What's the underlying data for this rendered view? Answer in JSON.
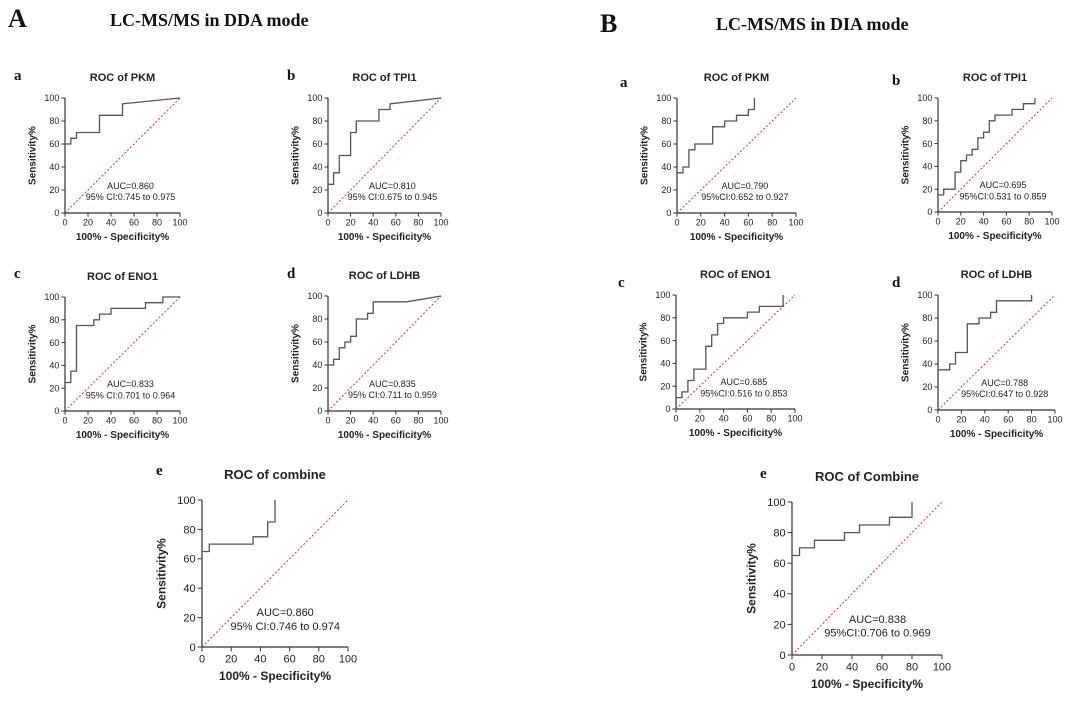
{
  "headers": {
    "A_letter": "A",
    "A_title": "LC-MS/MS in DDA mode",
    "B_letter": "B",
    "B_title": "LC-MS/MS in DIA mode"
  },
  "axis_text": {
    "xlabel": "100% - Specificity%",
    "ylabel": "Sensitivity%",
    "ticks": [
      "0",
      "20",
      "40",
      "60",
      "80",
      "100"
    ]
  },
  "colors": {
    "roc_line": "#555555",
    "diagonal": "#e03030",
    "axis": "#333333"
  },
  "chart_data": [
    {
      "type": "line",
      "group": "A",
      "letter": "a",
      "title": "ROC of PKM",
      "xlabel": "100% - Specificity%",
      "ylabel": "Sensitivity%",
      "xlim": [
        0,
        100
      ],
      "ylim": [
        0,
        100
      ],
      "auc": "AUC=0.860",
      "ci": "95% CI:0.745 to 0.975",
      "x": [
        0,
        0,
        5,
        5,
        10,
        10,
        30,
        30,
        50,
        50,
        100
      ],
      "y": [
        0,
        60,
        60,
        65,
        65,
        70,
        70,
        85,
        85,
        95,
        100
      ]
    },
    {
      "type": "line",
      "group": "A",
      "letter": "b",
      "title": "ROC of TPI1",
      "xlabel": "100% - Specificity%",
      "ylabel": "Sensitivity%",
      "xlim": [
        0,
        100
      ],
      "ylim": [
        0,
        100
      ],
      "auc": "AUC=0.810",
      "ci": "95% CI:0.675 to 0.945",
      "x": [
        0,
        0,
        5,
        5,
        10,
        10,
        20,
        20,
        25,
        25,
        30,
        30,
        45,
        45,
        55,
        55,
        100
      ],
      "y": [
        0,
        25,
        25,
        35,
        35,
        50,
        50,
        70,
        70,
        80,
        80,
        80,
        80,
        90,
        90,
        95,
        100
      ]
    },
    {
      "type": "line",
      "group": "A",
      "letter": "c",
      "title": "ROC of ENO1",
      "xlabel": "100% - Specificity%",
      "ylabel": "Sensitivity%",
      "xlim": [
        0,
        100
      ],
      "ylim": [
        0,
        100
      ],
      "auc": "AUC=0.833",
      "ci": "95% CI:0.701 to 0.964",
      "x": [
        0,
        0,
        5,
        5,
        10,
        10,
        25,
        25,
        30,
        30,
        40,
        40,
        50,
        50,
        70,
        70,
        85,
        85,
        100
      ],
      "y": [
        0,
        25,
        25,
        35,
        35,
        75,
        75,
        80,
        80,
        85,
        85,
        90,
        90,
        90,
        90,
        95,
        95,
        100,
        100
      ]
    },
    {
      "type": "line",
      "group": "A",
      "letter": "d",
      "title": "ROC of LDHB",
      "xlabel": "100% - Specificity%",
      "ylabel": "Sensitivity%",
      "xlim": [
        0,
        100
      ],
      "ylim": [
        0,
        100
      ],
      "auc": "AUC=0.835",
      "ci": "95% CI:0.711 to 0.959",
      "x": [
        0,
        0,
        5,
        5,
        10,
        10,
        15,
        15,
        20,
        20,
        25,
        25,
        35,
        35,
        40,
        40,
        70,
        70,
        100
      ],
      "y": [
        0,
        40,
        40,
        45,
        45,
        55,
        55,
        60,
        60,
        65,
        65,
        80,
        80,
        85,
        85,
        95,
        95,
        95,
        100
      ]
    },
    {
      "type": "line",
      "group": "A",
      "letter": "e",
      "title": "ROC of combine",
      "xlabel": "100% - Specificity%",
      "ylabel": "Sensitivity%",
      "xlim": [
        0,
        100
      ],
      "ylim": [
        0,
        100
      ],
      "auc": "AUC=0.860",
      "ci": "95% CI:0.746 to 0.974",
      "x": [
        0,
        0,
        5,
        5,
        35,
        35,
        45,
        45,
        50,
        50
      ],
      "y": [
        0,
        65,
        65,
        70,
        70,
        75,
        75,
        85,
        85,
        100
      ]
    },
    {
      "type": "line",
      "group": "B",
      "letter": "a",
      "title": "ROC of PKM",
      "xlabel": "100% - Specificity%",
      "ylabel": "Sensitivity%",
      "xlim": [
        0,
        100
      ],
      "ylim": [
        0,
        100
      ],
      "auc": "AUC=0.790",
      "ci": "95%CI:0.652 to 0.927",
      "x": [
        0,
        0,
        5,
        5,
        10,
        10,
        15,
        15,
        30,
        30,
        40,
        40,
        50,
        50,
        60,
        60,
        65,
        65
      ],
      "y": [
        0,
        35,
        35,
        40,
        40,
        55,
        55,
        60,
        60,
        75,
        75,
        80,
        80,
        85,
        85,
        90,
        90,
        100
      ]
    },
    {
      "type": "line",
      "group": "B",
      "letter": "b",
      "title": "ROC of TPI1",
      "xlabel": "100% - Specificity%",
      "ylabel": "Sensitivity%",
      "xlim": [
        0,
        100
      ],
      "ylim": [
        0,
        100
      ],
      "auc": "AUC=0.695",
      "ci": "95%CI:0.531 to 0.859",
      "x": [
        0,
        0,
        5,
        5,
        15,
        15,
        20,
        20,
        25,
        25,
        30,
        30,
        35,
        35,
        40,
        40,
        45,
        45,
        50,
        50,
        55,
        55,
        65,
        65,
        75,
        75,
        85,
        85
      ],
      "y": [
        0,
        15,
        15,
        20,
        20,
        35,
        35,
        45,
        45,
        50,
        50,
        55,
        55,
        65,
        65,
        70,
        70,
        80,
        80,
        85,
        85,
        85,
        85,
        90,
        90,
        95,
        95,
        100
      ]
    },
    {
      "type": "line",
      "group": "B",
      "letter": "c",
      "title": "ROC of ENO1",
      "xlabel": "100% - Specificity%",
      "ylabel": "Sensitivity%",
      "xlim": [
        0,
        100
      ],
      "ylim": [
        0,
        100
      ],
      "auc": "AUC=0.685",
      "ci": "95%CI:0.516 to 0.853",
      "x": [
        0,
        0,
        5,
        5,
        10,
        10,
        15,
        15,
        25,
        25,
        30,
        30,
        35,
        35,
        40,
        40,
        60,
        60,
        70,
        70,
        90,
        90
      ],
      "y": [
        0,
        10,
        10,
        15,
        15,
        25,
        25,
        35,
        35,
        55,
        55,
        65,
        65,
        75,
        75,
        80,
        80,
        85,
        85,
        90,
        90,
        100
      ]
    },
    {
      "type": "line",
      "group": "B",
      "letter": "d",
      "title": "ROC of LDHB",
      "xlabel": "100% - Specificity%",
      "ylabel": "Sensitivity%",
      "xlim": [
        0,
        100
      ],
      "ylim": [
        0,
        100
      ],
      "auc": "AUC=0.788",
      "ci": "95%CI:0.647 to 0.928",
      "x": [
        0,
        0,
        10,
        10,
        15,
        15,
        25,
        25,
        35,
        35,
        45,
        45,
        50,
        50,
        80,
        80
      ],
      "y": [
        0,
        35,
        35,
        40,
        40,
        50,
        50,
        75,
        75,
        80,
        80,
        85,
        85,
        95,
        95,
        100
      ]
    },
    {
      "type": "line",
      "group": "B",
      "letter": "e",
      "title": "ROC of Combine",
      "xlabel": "100% - Specificity%",
      "ylabel": "Sensitivity%",
      "xlim": [
        0,
        100
      ],
      "ylim": [
        0,
        100
      ],
      "auc": "AUC=0.838",
      "ci": "95%CI:0.706 to 0.969",
      "x": [
        0,
        0,
        5,
        5,
        10,
        10,
        15,
        15,
        35,
        35,
        45,
        45,
        65,
        65,
        80,
        80
      ],
      "y": [
        0,
        65,
        65,
        70,
        70,
        70,
        70,
        75,
        75,
        80,
        80,
        85,
        85,
        90,
        90,
        100
      ]
    }
  ]
}
